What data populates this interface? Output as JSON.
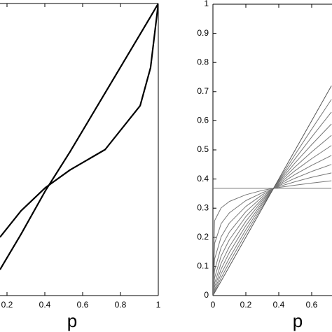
{
  "chart_data": [
    {
      "type": "line",
      "xlabel": "p",
      "xlim": [
        0,
        1
      ],
      "ylim": [
        0,
        1
      ],
      "xticks": [
        0.2,
        0.4,
        0.6,
        0.8,
        1
      ],
      "x": [
        0.163,
        0.274,
        0.404,
        0.533,
        0.719,
        0.904,
        0.959,
        1
      ],
      "series": [
        {
          "color": "#000000",
          "values": [
            0.089,
            0.21,
            0.36,
            0.492,
            0.694,
            0.895,
            0.955,
            1
          ]
        },
        {
          "color": "#000000",
          "values": [
            0.2,
            0.29,
            0.37,
            0.43,
            0.5,
            0.65,
            0.78,
            1
          ]
        }
      ]
    },
    {
      "type": "line",
      "xlabel": "p",
      "xlim": [
        0,
        1
      ],
      "ylim": [
        0,
        1
      ],
      "xticks": [
        0,
        0.2,
        0.4,
        0.6
      ],
      "yticks": [
        0,
        0.1,
        0.2,
        0.3,
        0.4,
        0.5,
        0.6,
        0.7,
        0.8,
        0.9,
        1
      ],
      "x": [
        0,
        0.01,
        0.05,
        0.1,
        0.2,
        0.3,
        0.4,
        0.5,
        0.6,
        0.72
      ],
      "series": [
        {
          "color": "#777777",
          "values": [
            0.368,
            0.368,
            0.368,
            0.368,
            0.368,
            0.368,
            0.368,
            0.368,
            0.368,
            0.368
          ]
        },
        {
          "color": "#777777",
          "values": [
            0,
            0.257,
            0.301,
            0.323,
            0.346,
            0.361,
            0.371,
            0.379,
            0.386,
            0.394
          ]
        },
        {
          "color": "#777777",
          "values": [
            0,
            0.179,
            0.247,
            0.284,
            0.326,
            0.353,
            0.374,
            0.391,
            0.406,
            0.421
          ]
        },
        {
          "color": "#777777",
          "values": [
            0,
            0.125,
            0.202,
            0.249,
            0.306,
            0.346,
            0.377,
            0.403,
            0.426,
            0.45
          ]
        },
        {
          "color": "#777777",
          "values": [
            0,
            0.087,
            0.166,
            0.218,
            0.288,
            0.339,
            0.38,
            0.416,
            0.447,
            0.481
          ]
        },
        {
          "color": "#777777",
          "values": [
            0,
            0.061,
            0.136,
            0.192,
            0.271,
            0.332,
            0.383,
            0.429,
            0.47,
            0.515
          ]
        },
        {
          "color": "#777777",
          "values": [
            0,
            0.042,
            0.111,
            0.168,
            0.255,
            0.326,
            0.387,
            0.442,
            0.493,
            0.55
          ]
        },
        {
          "color": "#777777",
          "values": [
            0,
            0.03,
            0.091,
            0.148,
            0.24,
            0.319,
            0.39,
            0.456,
            0.518,
            0.589
          ]
        },
        {
          "color": "#777777",
          "values": [
            0,
            0.02,
            0.075,
            0.129,
            0.226,
            0.313,
            0.393,
            0.47,
            0.544,
            0.63
          ]
        },
        {
          "color": "#777777",
          "values": [
            0,
            0.014,
            0.061,
            0.114,
            0.213,
            0.306,
            0.396,
            0.485,
            0.571,
            0.673
          ]
        },
        {
          "color": "#555555",
          "values": [
            0,
            0.01,
            0.05,
            0.1,
            0.2,
            0.3,
            0.4,
            0.5,
            0.6,
            0.72
          ]
        }
      ]
    }
  ]
}
